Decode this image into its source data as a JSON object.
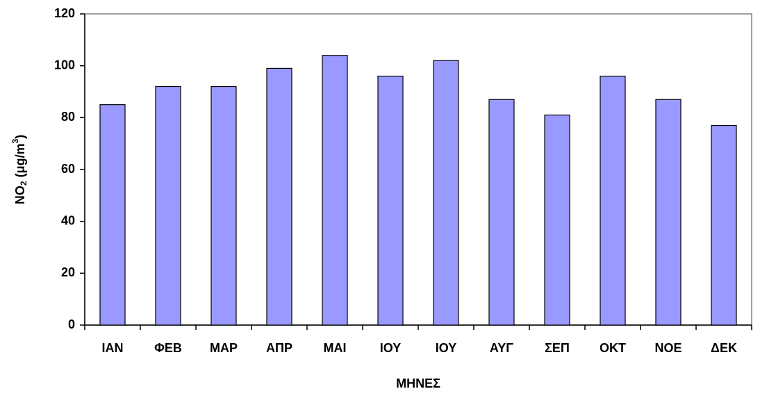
{
  "chart_data": {
    "type": "bar",
    "x_label": "ΜΗΝΕΣ",
    "y_label": [
      "NO",
      "2",
      " (μg/m",
      "3",
      ")"
    ],
    "categories": [
      "ΙΑΝ",
      "ΦΕΒ",
      "ΜΑΡ",
      "ΑΠΡ",
      "ΜΑΙ",
      "ΙΟΥ",
      "ΙΟΥ",
      "ΑΥΓ",
      "ΣΕΠ",
      "ΟΚΤ",
      "ΝΟΕ",
      "ΔΕΚ"
    ],
    "values": [
      85,
      92,
      92,
      99,
      104,
      96,
      102,
      87,
      81,
      96,
      87,
      77
    ],
    "color": "#9999ff",
    "ylim": [
      0,
      120
    ],
    "yticks": [
      0,
      20,
      40,
      60,
      80,
      100,
      120
    ],
    "grid": false
  }
}
